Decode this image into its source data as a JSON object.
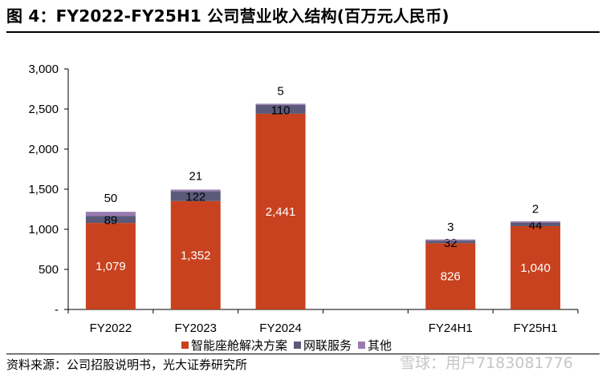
{
  "title": "图 4：FY2022-FY25H1 公司营业收入结构(百万元人民币)",
  "source": "资料来源：公司招股说明书，光大证券研究所",
  "watermark": "雪球：用户7183081776",
  "chart_data": {
    "type": "bar",
    "stacked": true,
    "categories": [
      "FY2022",
      "FY2023",
      "FY2024",
      "",
      "FY24H1",
      "FY25H1"
    ],
    "series": [
      {
        "name": "智能座舱解决方案",
        "color": "#C8421F",
        "values": [
          1079,
          1352,
          2441,
          null,
          826,
          1040
        ],
        "labels": [
          "1,079",
          "1,352",
          "2,441",
          "",
          "826",
          "1,040"
        ]
      },
      {
        "name": "网联服务",
        "color": "#5B5A7A",
        "values": [
          89,
          122,
          110,
          null,
          32,
          44
        ],
        "labels": [
          "89",
          "122",
          "110",
          "",
          "32",
          "44"
        ]
      },
      {
        "name": "其他",
        "color": "#9A7BB0",
        "values": [
          50,
          21,
          5,
          null,
          3,
          2
        ],
        "labels": [
          "50",
          "21",
          "5",
          "",
          "3",
          "2"
        ]
      }
    ],
    "ylim": [
      0,
      3000
    ],
    "yticks": [
      0,
      500,
      1000,
      1500,
      2000,
      2500,
      3000
    ],
    "ytick_labels": [
      "-",
      "500",
      "1,000",
      "1,500",
      "2,000",
      "2,500",
      "3,000"
    ],
    "grid": false,
    "legend_position": "bottom"
  }
}
